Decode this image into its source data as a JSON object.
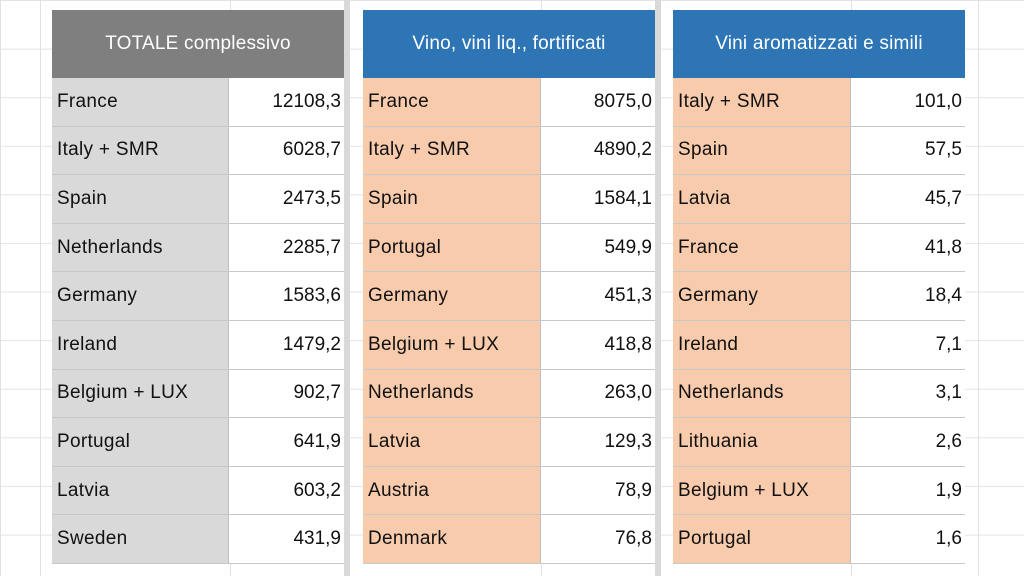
{
  "tables": [
    {
      "header": "TOTALE complessivo",
      "rows": [
        {
          "country": "France",
          "value": "12108,3"
        },
        {
          "country": "Italy + SMR",
          "value": "6028,7"
        },
        {
          "country": "Spain",
          "value": "2473,5"
        },
        {
          "country": "Netherlands",
          "value": "2285,7"
        },
        {
          "country": "Germany",
          "value": "1583,6"
        },
        {
          "country": "Ireland",
          "value": "1479,2"
        },
        {
          "country": "Belgium + LUX",
          "value": "902,7"
        },
        {
          "country": "Portugal",
          "value": "641,9"
        },
        {
          "country": "Latvia",
          "value": "603,2"
        },
        {
          "country": "Sweden",
          "value": "431,9"
        }
      ]
    },
    {
      "header": "Vino, vini liq., fortificati",
      "rows": [
        {
          "country": "France",
          "value": "8075,0"
        },
        {
          "country": "Italy + SMR",
          "value": "4890,2"
        },
        {
          "country": "Spain",
          "value": "1584,1"
        },
        {
          "country": "Portugal",
          "value": "549,9"
        },
        {
          "country": "Germany",
          "value": "451,3"
        },
        {
          "country": "Belgium + LUX",
          "value": "418,8"
        },
        {
          "country": "Netherlands",
          "value": "263,0"
        },
        {
          "country": "Latvia",
          "value": "129,3"
        },
        {
          "country": "Austria",
          "value": "78,9"
        },
        {
          "country": "Denmark",
          "value": "76,8"
        }
      ]
    },
    {
      "header": "Vini aromatizzati e simili",
      "rows": [
        {
          "country": "Italy + SMR",
          "value": "101,0"
        },
        {
          "country": "Spain",
          "value": "57,5"
        },
        {
          "country": "Latvia",
          "value": "45,7"
        },
        {
          "country": "France",
          "value": "41,8"
        },
        {
          "country": "Germany",
          "value": "18,4"
        },
        {
          "country": "Ireland",
          "value": "7,1"
        },
        {
          "country": "Netherlands",
          "value": "3,1"
        },
        {
          "country": "Lithuania",
          "value": "2,6"
        },
        {
          "country": "Belgium + LUX",
          "value": "1,9"
        },
        {
          "country": "Portugal",
          "value": "1,6"
        }
      ]
    }
  ],
  "colors": {
    "header_total": "#7f7f7f",
    "header_category": "#2e75b6",
    "name_total": "#d9d9d9",
    "name_category": "#f8cbad"
  }
}
